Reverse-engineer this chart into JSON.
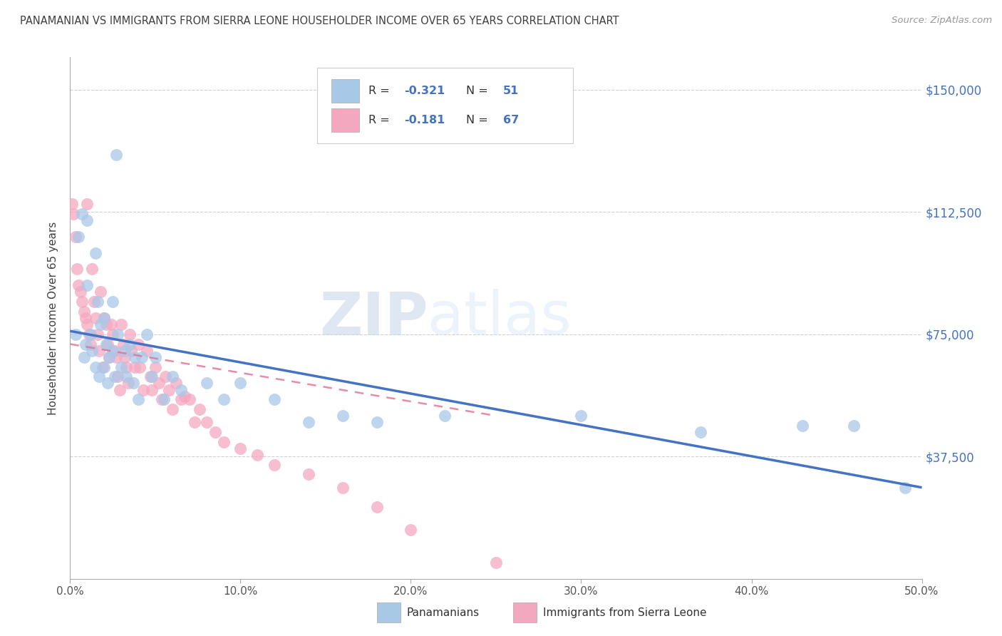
{
  "title": "PANAMANIAN VS IMMIGRANTS FROM SIERRA LEONE HOUSEHOLDER INCOME OVER 65 YEARS CORRELATION CHART",
  "source": "Source: ZipAtlas.com",
  "xlabel_ticks": [
    "0.0%",
    "10.0%",
    "20.0%",
    "30.0%",
    "40.0%",
    "50.0%"
  ],
  "xlabel_tick_vals": [
    0.0,
    0.1,
    0.2,
    0.3,
    0.4,
    0.5
  ],
  "ylabel": "Householder Income Over 65 years",
  "ylabel_ticks": [
    "$150,000",
    "$112,500",
    "$75,000",
    "$37,500"
  ],
  "ylabel_tick_vals": [
    150000,
    112500,
    75000,
    37500
  ],
  "xlim": [
    0.0,
    0.5
  ],
  "ylim": [
    0,
    160000
  ],
  "R_panama": -0.321,
  "N_panama": 51,
  "R_sierraleone": -0.181,
  "N_sierraleone": 67,
  "color_panama": "#a8c8e8",
  "color_sierraleone": "#f4a8c0",
  "color_trendline_panama": "#4472c4",
  "color_trendline_sierraleone": "#e07090",
  "color_title": "#404040",
  "color_axis_right": "#4472c4",
  "watermark_zip": "ZIP",
  "watermark_atlas": "atlas",
  "panama_x": [
    0.003,
    0.005,
    0.007,
    0.008,
    0.009,
    0.01,
    0.01,
    0.012,
    0.013,
    0.015,
    0.015,
    0.016,
    0.017,
    0.018,
    0.02,
    0.02,
    0.021,
    0.022,
    0.023,
    0.025,
    0.025,
    0.026,
    0.027,
    0.028,
    0.03,
    0.032,
    0.033,
    0.035,
    0.037,
    0.038,
    0.04,
    0.042,
    0.045,
    0.048,
    0.05,
    0.055,
    0.06,
    0.065,
    0.08,
    0.09,
    0.1,
    0.12,
    0.14,
    0.16,
    0.18,
    0.22,
    0.3,
    0.37,
    0.43,
    0.46,
    0.49
  ],
  "panama_y": [
    75000,
    105000,
    112000,
    68000,
    72000,
    110000,
    90000,
    75000,
    70000,
    100000,
    65000,
    85000,
    62000,
    78000,
    80000,
    65000,
    72000,
    60000,
    68000,
    70000,
    85000,
    62000,
    130000,
    75000,
    65000,
    70000,
    62000,
    72000,
    60000,
    68000,
    55000,
    68000,
    75000,
    62000,
    68000,
    55000,
    62000,
    58000,
    60000,
    55000,
    60000,
    55000,
    48000,
    50000,
    48000,
    50000,
    50000,
    45000,
    47000,
    47000,
    28000
  ],
  "sierraleone_x": [
    0.001,
    0.002,
    0.003,
    0.004,
    0.005,
    0.006,
    0.007,
    0.008,
    0.009,
    0.01,
    0.01,
    0.011,
    0.012,
    0.013,
    0.014,
    0.015,
    0.016,
    0.017,
    0.018,
    0.019,
    0.02,
    0.021,
    0.022,
    0.023,
    0.024,
    0.025,
    0.026,
    0.027,
    0.028,
    0.029,
    0.03,
    0.031,
    0.032,
    0.033,
    0.034,
    0.035,
    0.036,
    0.038,
    0.04,
    0.041,
    0.043,
    0.045,
    0.047,
    0.048,
    0.05,
    0.052,
    0.054,
    0.056,
    0.058,
    0.06,
    0.062,
    0.065,
    0.067,
    0.07,
    0.073,
    0.076,
    0.08,
    0.085,
    0.09,
    0.1,
    0.11,
    0.12,
    0.14,
    0.16,
    0.18,
    0.2,
    0.25
  ],
  "sierraleone_y": [
    115000,
    112000,
    105000,
    95000,
    90000,
    88000,
    85000,
    82000,
    80000,
    78000,
    115000,
    75000,
    72000,
    95000,
    85000,
    80000,
    75000,
    70000,
    88000,
    65000,
    80000,
    78000,
    72000,
    68000,
    78000,
    75000,
    70000,
    68000,
    62000,
    58000,
    78000,
    72000,
    68000,
    65000,
    60000,
    75000,
    70000,
    65000,
    72000,
    65000,
    58000,
    70000,
    62000,
    58000,
    65000,
    60000,
    55000,
    62000,
    58000,
    52000,
    60000,
    55000,
    56000,
    55000,
    48000,
    52000,
    48000,
    45000,
    42000,
    40000,
    38000,
    35000,
    32000,
    28000,
    22000,
    15000,
    5000
  ],
  "trendline_panama_x0": 0.0,
  "trendline_panama_y0": 76000,
  "trendline_panama_x1": 0.5,
  "trendline_panama_y1": 28000,
  "trendline_sl_x0": 0.0,
  "trendline_sl_y0": 72000,
  "trendline_sl_x1": 0.25,
  "trendline_sl_y1": 50000
}
